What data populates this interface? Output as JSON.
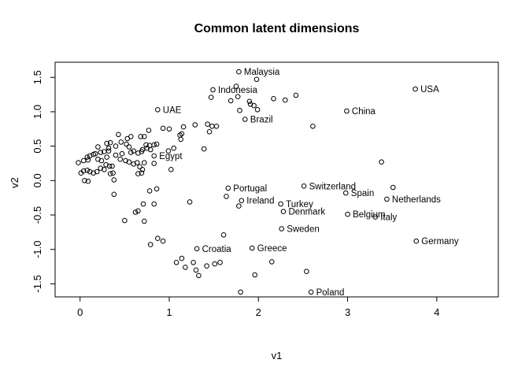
{
  "title": "Common latent dimensions",
  "chart_data": {
    "type": "scatter",
    "title": "Common latent dimensions",
    "xlabel": "v1",
    "ylabel": "v2",
    "xlim": [
      -0.28,
      4.69
    ],
    "ylim": [
      -1.69,
      1.72
    ],
    "x_ticks": [
      0,
      1,
      2,
      3,
      4
    ],
    "x_tick_labels": [
      "0",
      "1",
      "2",
      "3",
      "4"
    ],
    "y_ticks": [
      -1.5,
      -1.0,
      -0.5,
      0.0,
      0.5,
      1.0,
      1.5
    ],
    "y_tick_labels": [
      "-1.5",
      "-1.0",
      "-0.5",
      "0.0",
      "0.5",
      "1.0",
      "1.5"
    ],
    "grid": false,
    "legend": null,
    "point_style": {
      "marker": "open-circle",
      "stroke": "#000000",
      "fill": "none",
      "radius_px": 2.8
    },
    "labeled_points": [
      {
        "label": "Malaysia",
        "x": 1.78,
        "y": 1.58
      },
      {
        "label": "Indonesia",
        "x": 1.49,
        "y": 1.32
      },
      {
        "label": "UAE",
        "x": 0.87,
        "y": 1.03
      },
      {
        "label": "Brazil",
        "x": 1.85,
        "y": 0.89
      },
      {
        "label": "China",
        "x": 2.99,
        "y": 1.01
      },
      {
        "label": "USA",
        "x": 3.76,
        "y": 1.33
      },
      {
        "label": "Egypt",
        "x": 0.83,
        "y": 0.36
      },
      {
        "label": "Portugal",
        "x": 1.66,
        "y": -0.11
      },
      {
        "label": "Ireland",
        "x": 1.81,
        "y": -0.29
      },
      {
        "label": "Turkey",
        "x": 2.25,
        "y": -0.34
      },
      {
        "label": "Denmark",
        "x": 2.28,
        "y": -0.45
      },
      {
        "label": "Switzerland",
        "x": 2.51,
        "y": -0.08
      },
      {
        "label": "Spain",
        "x": 2.98,
        "y": -0.18
      },
      {
        "label": "Netherlands",
        "x": 3.44,
        "y": -0.27
      },
      {
        "label": "Belgium",
        "x": 3.0,
        "y": -0.49
      },
      {
        "label": "Italy",
        "x": 3.31,
        "y": -0.53
      },
      {
        "label": "Germany",
        "x": 3.77,
        "y": -0.88
      },
      {
        "label": "Sweden",
        "x": 2.26,
        "y": -0.7
      },
      {
        "label": "Greece",
        "x": 1.93,
        "y": -0.98
      },
      {
        "label": "Croatia",
        "x": 1.31,
        "y": -0.99
      },
      {
        "label": "Poland",
        "x": 2.59,
        "y": -1.62
      }
    ],
    "unlabeled_points": [
      [
        1.98,
        1.47
      ],
      [
        1.75,
        1.37
      ],
      [
        1.47,
        1.21
      ],
      [
        1.69,
        1.16
      ],
      [
        1.77,
        1.22
      ],
      [
        1.9,
        1.15
      ],
      [
        1.91,
        1.11
      ],
      [
        1.95,
        1.09
      ],
      [
        1.99,
        1.03
      ],
      [
        1.79,
        1.02
      ],
      [
        2.17,
        1.19
      ],
      [
        2.3,
        1.17
      ],
      [
        2.42,
        1.24
      ],
      [
        2.61,
        0.79
      ],
      [
        3.38,
        0.27
      ],
      [
        1.43,
        0.82
      ],
      [
        1.48,
        0.79
      ],
      [
        1.45,
        0.71
      ],
      [
        1.53,
        0.79
      ],
      [
        1.29,
        0.81
      ],
      [
        1.16,
        0.78
      ],
      [
        1.12,
        0.66
      ],
      [
        1.14,
        0.68
      ],
      [
        0.93,
        0.76
      ],
      [
        1.0,
        0.75
      ],
      [
        0.77,
        0.73
      ],
      [
        0.68,
        0.64
      ],
      [
        0.72,
        0.64
      ],
      [
        0.57,
        0.64
      ],
      [
        0.53,
        0.61
      ],
      [
        0.43,
        0.67
      ],
      [
        1.13,
        0.6
      ],
      [
        0.3,
        0.54
      ],
      [
        0.34,
        0.55
      ],
      [
        0.2,
        0.49
      ],
      [
        0.46,
        0.56
      ],
      [
        0.55,
        0.49
      ],
      [
        0.74,
        0.52
      ],
      [
        0.78,
        0.51
      ],
      [
        0.83,
        0.52
      ],
      [
        0.86,
        0.53
      ],
      [
        0.52,
        0.53
      ],
      [
        0.4,
        0.5
      ],
      [
        0.32,
        0.47
      ],
      [
        0.99,
        0.43
      ],
      [
        1.05,
        0.47
      ],
      [
        1.39,
        0.46
      ],
      [
        0.7,
        0.45
      ],
      [
        0.75,
        0.47
      ],
      [
        0.79,
        0.45
      ],
      [
        0.65,
        0.4
      ],
      [
        0.69,
        0.42
      ],
      [
        0.23,
        0.41
      ],
      [
        0.27,
        0.42
      ],
      [
        0.17,
        0.39
      ],
      [
        0.11,
        0.36
      ],
      [
        0.15,
        0.38
      ],
      [
        0.08,
        0.34
      ],
      [
        0.32,
        0.43
      ],
      [
        0.4,
        0.37
      ],
      [
        0.57,
        0.41
      ],
      [
        0.6,
        0.43
      ],
      [
        0.47,
        0.39
      ],
      [
        -0.02,
        0.26
      ],
      [
        0.04,
        0.29
      ],
      [
        0.09,
        0.3
      ],
      [
        0.2,
        0.31
      ],
      [
        0.24,
        0.29
      ],
      [
        0.3,
        0.34
      ],
      [
        0.45,
        0.31
      ],
      [
        0.51,
        0.29
      ],
      [
        0.55,
        0.27
      ],
      [
        0.64,
        0.26
      ],
      [
        0.6,
        0.24
      ],
      [
        0.83,
        0.25
      ],
      [
        0.72,
        0.26
      ],
      [
        0.29,
        0.23
      ],
      [
        0.33,
        0.21
      ],
      [
        0.36,
        0.21
      ],
      [
        0.23,
        0.18
      ],
      [
        0.27,
        0.16
      ],
      [
        0.34,
        0.1
      ],
      [
        0.37,
        0.11
      ],
      [
        0.01,
        0.11
      ],
      [
        1.02,
        0.16
      ],
      [
        0.7,
        0.16
      ],
      [
        0.65,
        0.1
      ],
      [
        0.69,
        0.11
      ],
      [
        0.67,
        0.2
      ],
      [
        0.04,
        0.14
      ],
      [
        0.08,
        0.15
      ],
      [
        0.11,
        0.13
      ],
      [
        0.15,
        0.11
      ],
      [
        0.19,
        0.13
      ],
      [
        0.05,
        0.0
      ],
      [
        0.38,
        0.01
      ],
      [
        0.09,
        -0.01
      ],
      [
        0.38,
        -0.2
      ],
      [
        0.78,
        -0.15
      ],
      [
        0.86,
        -0.12
      ],
      [
        0.71,
        -0.34
      ],
      [
        0.83,
        -0.34
      ],
      [
        0.62,
        -0.46
      ],
      [
        0.65,
        -0.44
      ],
      [
        0.5,
        -0.58
      ],
      [
        0.72,
        -0.59
      ],
      [
        1.23,
        -0.31
      ],
      [
        1.64,
        -0.23
      ],
      [
        1.78,
        -0.37
      ],
      [
        3.51,
        -0.1
      ],
      [
        0.87,
        -0.84
      ],
      [
        0.93,
        -0.88
      ],
      [
        0.79,
        -0.93
      ],
      [
        1.61,
        -0.79
      ],
      [
        1.08,
        -1.19
      ],
      [
        1.14,
        -1.13
      ],
      [
        1.18,
        -1.26
      ],
      [
        1.27,
        -1.19
      ],
      [
        1.3,
        -1.3
      ],
      [
        1.33,
        -1.38
      ],
      [
        1.42,
        -1.24
      ],
      [
        1.51,
        -1.21
      ],
      [
        1.57,
        -1.19
      ],
      [
        2.15,
        -1.18
      ],
      [
        1.96,
        -1.37
      ],
      [
        2.54,
        -1.32
      ],
      [
        1.8,
        -1.62
      ]
    ]
  }
}
